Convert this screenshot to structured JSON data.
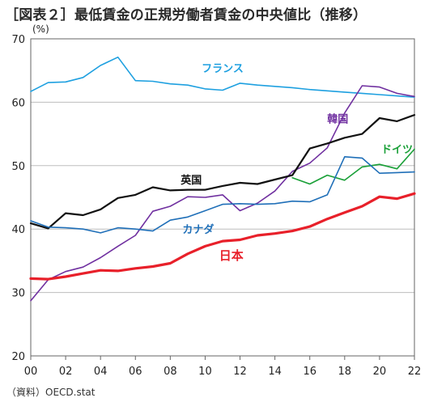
{
  "title": "［図表２］最低賃金の正規労働者賃金の中央値比（推移）",
  "source": "（資料）OECD.stat",
  "chart_data": {
    "type": "line",
    "ylabel": "(%)",
    "xlabel": "",
    "ylim": [
      20,
      70
    ],
    "yticks": [
      20,
      30,
      40,
      50,
      60,
      70
    ],
    "xlim": [
      2000,
      2022
    ],
    "xticks": [
      {
        "value": 2000,
        "label": "00"
      },
      {
        "value": 2002,
        "label": "02"
      },
      {
        "value": 2004,
        "label": "04"
      },
      {
        "value": 2006,
        "label": "06"
      },
      {
        "value": 2008,
        "label": "08"
      },
      {
        "value": 2010,
        "label": "10"
      },
      {
        "value": 2012,
        "label": "12"
      },
      {
        "value": 2014,
        "label": "14"
      },
      {
        "value": 2016,
        "label": "16"
      },
      {
        "value": 2018,
        "label": "18"
      },
      {
        "value": 2020,
        "label": "20"
      },
      {
        "value": 2022,
        "label": "22"
      }
    ],
    "grid": "horizontal",
    "series": [
      {
        "name": "フランス",
        "color": "#1ea0e0",
        "width": 1.6,
        "x": [
          2000,
          2001,
          2002,
          2003,
          2004,
          2005,
          2006,
          2007,
          2008,
          2009,
          2010,
          2011,
          2012,
          2013,
          2014,
          2015,
          2016,
          2017,
          2018,
          2019,
          2020,
          2021,
          2022
        ],
        "y": [
          61.7,
          63.1,
          63.2,
          63.9,
          65.8,
          67.1,
          63.4,
          63.3,
          62.9,
          62.7,
          62.1,
          61.9,
          63.0,
          62.7,
          62.5,
          62.3,
          62.0,
          61.8,
          61.6,
          61.4,
          61.2,
          61.0,
          60.8
        ]
      },
      {
        "name": "韓国",
        "color": "#7030a0",
        "width": 1.6,
        "x": [
          2000,
          2001,
          2002,
          2003,
          2004,
          2005,
          2006,
          2007,
          2008,
          2009,
          2010,
          2011,
          2012,
          2013,
          2014,
          2015,
          2016,
          2017,
          2018,
          2019,
          2020,
          2021,
          2022
        ],
        "y": [
          28.7,
          32.0,
          33.3,
          34.0,
          35.5,
          37.3,
          39.0,
          42.8,
          43.6,
          45.1,
          45.0,
          45.4,
          42.9,
          44.1,
          46.0,
          49.1,
          50.4,
          52.8,
          58.3,
          62.6,
          62.4,
          61.4,
          60.9
        ]
      },
      {
        "name": "英国",
        "color": "#111111",
        "width": 2.2,
        "x": [
          2000,
          2001,
          2002,
          2003,
          2004,
          2005,
          2006,
          2007,
          2008,
          2009,
          2010,
          2011,
          2012,
          2013,
          2014,
          2015,
          2016,
          2017,
          2018,
          2019,
          2020,
          2021,
          2022
        ],
        "y": [
          40.9,
          40.1,
          42.5,
          42.2,
          43.1,
          44.9,
          45.4,
          46.6,
          46.1,
          46.2,
          46.2,
          46.8,
          47.3,
          47.1,
          47.8,
          48.5,
          52.7,
          53.5,
          54.4,
          55.0,
          57.5,
          57.0,
          58.0
        ]
      },
      {
        "name": "ドイツ",
        "color": "#1aa038",
        "width": 1.6,
        "x": [
          2015,
          2016,
          2017,
          2018,
          2019,
          2020,
          2021,
          2022
        ],
        "y": [
          48.1,
          47.1,
          48.5,
          47.7,
          49.8,
          50.2,
          49.5,
          52.6
        ]
      },
      {
        "name": "カナダ",
        "color": "#1f6fb8",
        "width": 1.6,
        "x": [
          2000,
          2001,
          2002,
          2003,
          2004,
          2005,
          2006,
          2007,
          2008,
          2009,
          2010,
          2011,
          2012,
          2013,
          2014,
          2015,
          2016,
          2017,
          2018,
          2019,
          2020,
          2021,
          2022
        ],
        "y": [
          41.3,
          40.3,
          40.2,
          40.0,
          39.4,
          40.2,
          40.0,
          39.7,
          41.4,
          41.9,
          42.9,
          43.9,
          44.0,
          43.9,
          44.0,
          44.4,
          44.3,
          45.4,
          51.4,
          51.2,
          48.8,
          48.9,
          49.0
        ]
      },
      {
        "name": "日本",
        "color": "#e8202a",
        "width": 3.2,
        "x": [
          2000,
          2001,
          2002,
          2003,
          2004,
          2005,
          2006,
          2007,
          2008,
          2009,
          2010,
          2011,
          2012,
          2013,
          2014,
          2015,
          2016,
          2017,
          2018,
          2019,
          2020,
          2021,
          2022
        ],
        "y": [
          32.2,
          32.1,
          32.5,
          33.0,
          33.5,
          33.4,
          33.8,
          34.1,
          34.6,
          36.1,
          37.3,
          38.1,
          38.3,
          39.0,
          39.3,
          39.7,
          40.4,
          41.6,
          42.6,
          43.6,
          45.1,
          44.8,
          45.6
        ]
      }
    ],
    "annotations": [
      {
        "text": "フランス",
        "color": "#1ea0e0"
      },
      {
        "text": "韓国",
        "color": "#7030a0"
      },
      {
        "text": "英国",
        "color": "#111111"
      },
      {
        "text": "ドイツ",
        "color": "#1aa038"
      },
      {
        "text": "カナダ",
        "color": "#1f6fb8"
      },
      {
        "text": "日本",
        "color": "#e8202a"
      }
    ]
  }
}
